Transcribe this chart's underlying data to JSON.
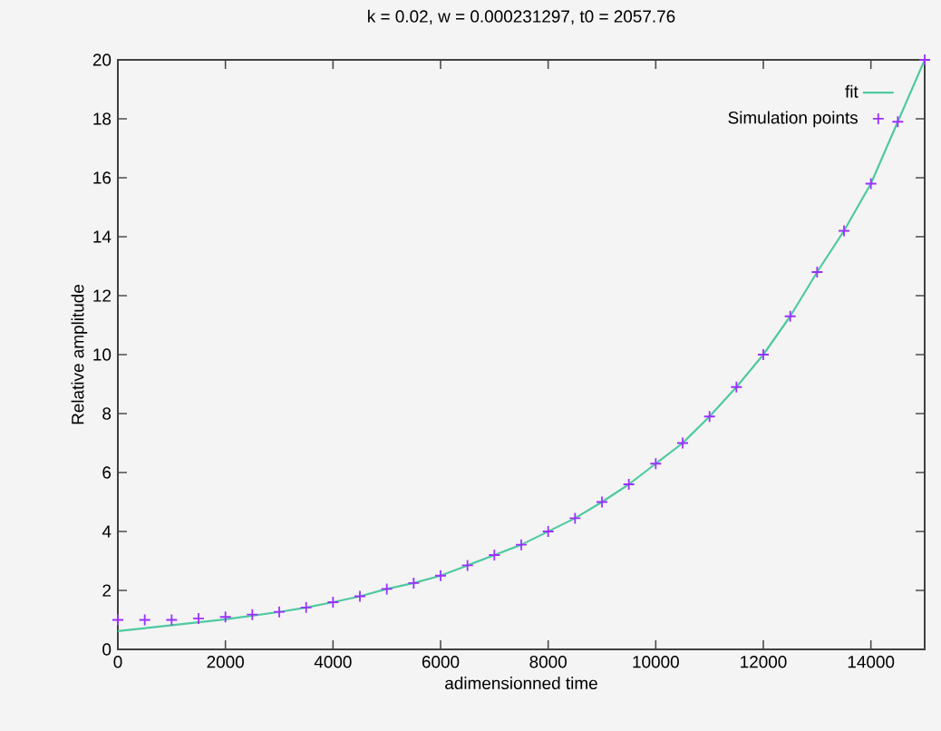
{
  "chart_data": {
    "type": "line",
    "title": "k = 0.02, w = 0.000231297, t0 = 2057.76",
    "xlabel": "adimensionned time",
    "ylabel": "Relative amplitude",
    "xlim": [
      0,
      15000
    ],
    "ylim": [
      0,
      20
    ],
    "xticks": [
      0,
      2000,
      4000,
      6000,
      8000,
      10000,
      12000,
      14000
    ],
    "yticks": [
      0,
      2,
      4,
      6,
      8,
      10,
      12,
      14,
      16,
      18,
      20
    ],
    "grid": false,
    "legend": "top right",
    "series": [
      {
        "name": "fit",
        "color": "#4fc9a0",
        "marker": "none",
        "line_style": "solid",
        "x": [
          0,
          500,
          1000,
          1500,
          2000,
          2500,
          3000,
          3500,
          4000,
          4500,
          5000,
          5500,
          6000,
          6500,
          7000,
          7500,
          8000,
          8500,
          9000,
          9500,
          10000,
          10500,
          11000,
          11500,
          12000,
          12500,
          13000,
          13500,
          14000,
          14500,
          15000
        ],
        "values": [
          0.62,
          0.72,
          0.82,
          0.92,
          1.02,
          1.14,
          1.27,
          1.42,
          1.6,
          1.8,
          2.05,
          2.25,
          2.5,
          2.85,
          3.2,
          3.55,
          4.0,
          4.45,
          5.0,
          5.6,
          6.3,
          7.0,
          7.9,
          8.9,
          10.0,
          11.3,
          12.8,
          14.2,
          15.8,
          17.9,
          20.0
        ]
      },
      {
        "name": "Simulation points",
        "type": "scatter",
        "color": "#9b30ff",
        "marker": "cross",
        "x": [
          0,
          500,
          1000,
          1500,
          2000,
          2500,
          3000,
          3500,
          4000,
          4500,
          5000,
          5500,
          6000,
          6500,
          7000,
          7500,
          8000,
          8500,
          9000,
          9500,
          10000,
          10500,
          11000,
          11500,
          12000,
          12500,
          13000,
          13500,
          14000,
          14500,
          15000
        ],
        "values": [
          1.0,
          1.0,
          1.0,
          1.05,
          1.1,
          1.18,
          1.27,
          1.42,
          1.6,
          1.8,
          2.05,
          2.25,
          2.5,
          2.85,
          3.2,
          3.55,
          4.0,
          4.45,
          5.0,
          5.6,
          6.3,
          7.0,
          7.9,
          8.9,
          10.0,
          11.3,
          12.8,
          14.2,
          15.8,
          17.9,
          20.0
        ]
      }
    ]
  }
}
